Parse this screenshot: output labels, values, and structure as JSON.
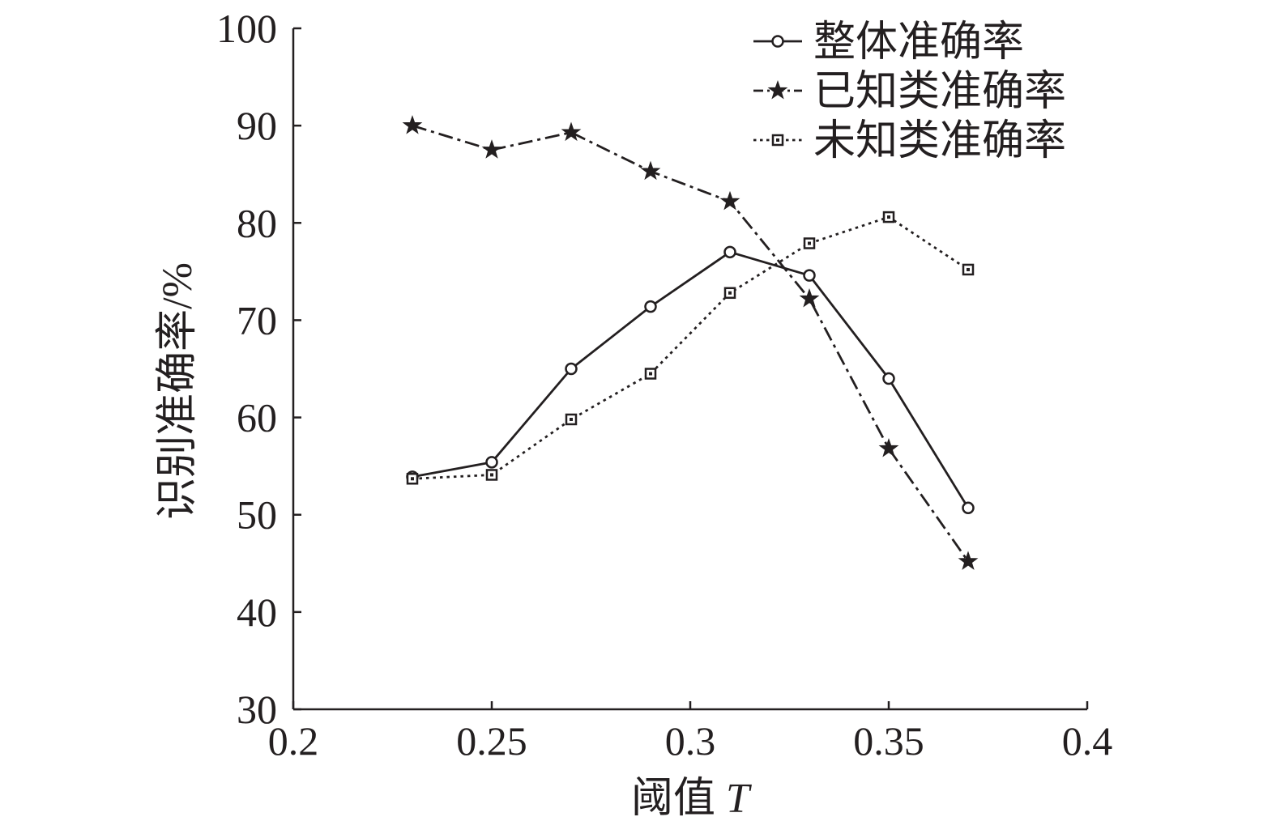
{
  "chart_data": {
    "type": "line",
    "title": "",
    "xlabel": "阈值",
    "xlabel_var": "T",
    "ylabel": "识别准确率/%",
    "x": [
      0.23,
      0.25,
      0.27,
      0.29,
      0.31,
      0.33,
      0.35,
      0.37
    ],
    "xlim": [
      0.2,
      0.4
    ],
    "ylim": [
      30,
      100
    ],
    "xticks": [
      0.2,
      0.25,
      0.3,
      0.35,
      0.4
    ],
    "xtick_labels": [
      "0.2",
      "0.25",
      "0.3",
      "0.35",
      "0.4"
    ],
    "yticks": [
      30,
      40,
      50,
      60,
      70,
      80,
      90,
      100
    ],
    "ytick_labels": [
      "30",
      "40",
      "50",
      "60",
      "70",
      "80",
      "90",
      "100"
    ],
    "grid": false,
    "legend_position": "top-right",
    "series": [
      {
        "name": "整体准确率",
        "values": [
          53.9,
          55.4,
          65.0,
          71.4,
          77.0,
          74.6,
          64.0,
          50.7
        ],
        "line_style": "solid",
        "marker": "circle",
        "color": "#231f20"
      },
      {
        "name": "已知类准确率",
        "values": [
          90.0,
          87.5,
          89.3,
          85.3,
          82.2,
          72.2,
          56.8,
          45.2
        ],
        "line_style": "dashdot",
        "marker": "star",
        "color": "#231f20"
      },
      {
        "name": "未知类准确率",
        "values": [
          53.7,
          54.1,
          59.8,
          64.5,
          72.8,
          77.9,
          80.6,
          75.2
        ],
        "line_style": "dotted",
        "marker": "square",
        "color": "#231f20"
      }
    ]
  }
}
